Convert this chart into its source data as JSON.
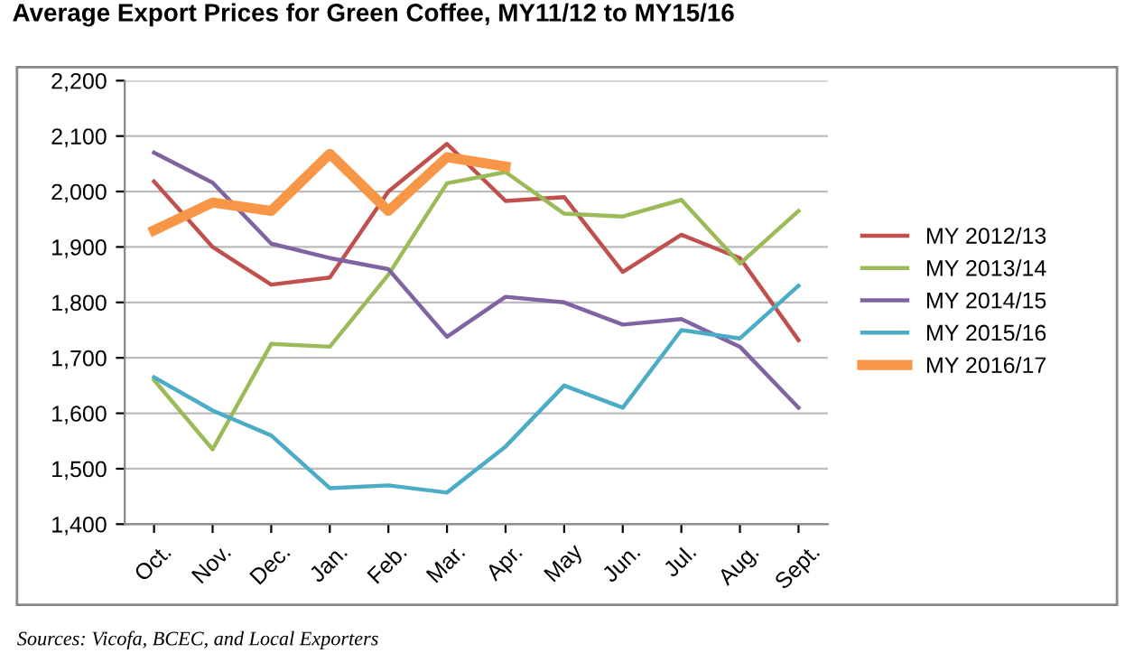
{
  "chart_data": {
    "type": "line",
    "title": "Average Export Prices for Green Coffee, MY11/12 to MY15/16",
    "categories": [
      "Oct.",
      "Nov.",
      "Dec.",
      "Jan.",
      "Feb.",
      "Mar.",
      "Apr.",
      "May",
      "Jun.",
      "Jul.",
      "Aug.",
      "Sept."
    ],
    "series": [
      {
        "name": "MY 2012/13",
        "color": "#c0504d",
        "values": [
          2018,
          1900,
          1832,
          1845,
          2000,
          2086,
          1983,
          1990,
          1855,
          1922,
          1880,
          1732
        ]
      },
      {
        "name": "MY 2013/14",
        "color": "#9bbb59",
        "values": [
          1660,
          1535,
          1725,
          1720,
          1850,
          2015,
          2035,
          1960,
          1955,
          1985,
          1870,
          1965
        ]
      },
      {
        "name": "MY 2014/15",
        "color": "#8064a2",
        "values": [
          2070,
          2016,
          1906,
          1880,
          1860,
          1738,
          1810,
          1800,
          1760,
          1770,
          1720,
          1610
        ]
      },
      {
        "name": "MY 2015/16",
        "color": "#4bacc6",
        "values": [
          1665,
          1605,
          1560,
          1465,
          1470,
          1457,
          1540,
          1650,
          1610,
          1750,
          1735,
          1830
        ]
      },
      {
        "name": "MY 2016/17",
        "color": "#f79646",
        "values": [
          1930,
          1980,
          1965,
          2068,
          1965,
          2062,
          2045,
          null,
          null,
          null,
          null,
          null
        ]
      }
    ],
    "ylim": [
      1400,
      2200
    ],
    "yticks": [
      {
        "value": 1400,
        "label": "1,400"
      },
      {
        "value": 1500,
        "label": "1,500"
      },
      {
        "value": 1600,
        "label": "1,600"
      },
      {
        "value": 1700,
        "label": "1,700"
      },
      {
        "value": 1800,
        "label": "1,800"
      },
      {
        "value": 1900,
        "label": "1,900"
      },
      {
        "value": 2000,
        "label": "2,000"
      },
      {
        "value": 2100,
        "label": "2,100"
      },
      {
        "value": 2200,
        "label": "2,200"
      }
    ],
    "grid": "y",
    "legend": "right",
    "marker": "none",
    "line_style": "solid",
    "annotations": [
      "Sources: Vicofa, BCEC, and Local Exporters"
    ]
  }
}
